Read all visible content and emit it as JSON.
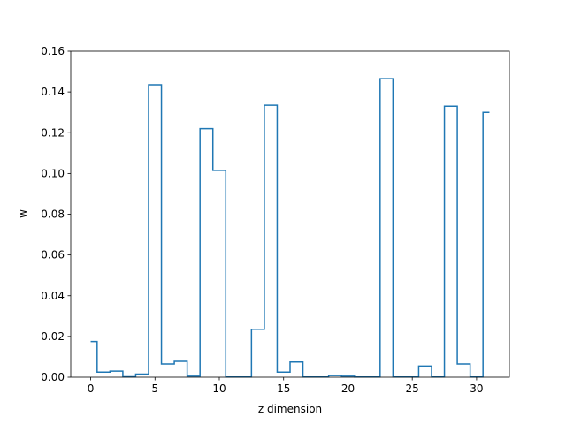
{
  "chart_data": {
    "type": "line",
    "style": "step",
    "xlabel": "z dimension",
    "ylabel": "w",
    "xlim": [
      -1.55,
      32.55
    ],
    "ylim": [
      0,
      0.16
    ],
    "xticks": [
      0,
      5,
      10,
      15,
      20,
      25,
      30
    ],
    "xtick_labels": [
      "0",
      "5",
      "10",
      "15",
      "20",
      "25",
      "30"
    ],
    "yticks": [
      0.0,
      0.02,
      0.04,
      0.06,
      0.08,
      0.1,
      0.12,
      0.14,
      0.16
    ],
    "ytick_labels": [
      "0.00",
      "0.02",
      "0.04",
      "0.06",
      "0.08",
      "0.10",
      "0.12",
      "0.14",
      "0.16"
    ],
    "grid": false,
    "color": "#1f77b4",
    "series": [
      {
        "x": [
          0,
          1,
          2,
          3,
          4,
          5,
          6,
          7,
          8,
          9,
          10,
          11,
          12,
          13,
          14,
          15,
          16,
          17,
          18,
          19,
          20,
          21,
          22,
          23,
          24,
          25,
          26,
          27,
          28,
          29,
          30,
          31
        ],
        "values": [
          0.0175,
          0.0025,
          0.003,
          0.0002,
          0.0015,
          0.1435,
          0.0065,
          0.0078,
          0.0005,
          0.122,
          0.1015,
          0.0001,
          0.0001,
          0.0235,
          0.1335,
          0.0025,
          0.0075,
          0.0001,
          0.0001,
          0.0008,
          0.0005,
          0.0001,
          0.0001,
          0.1465,
          0.0001,
          0.0001,
          0.0055,
          0.0001,
          0.133,
          0.0065,
          0.0001,
          0.13
        ]
      }
    ]
  }
}
